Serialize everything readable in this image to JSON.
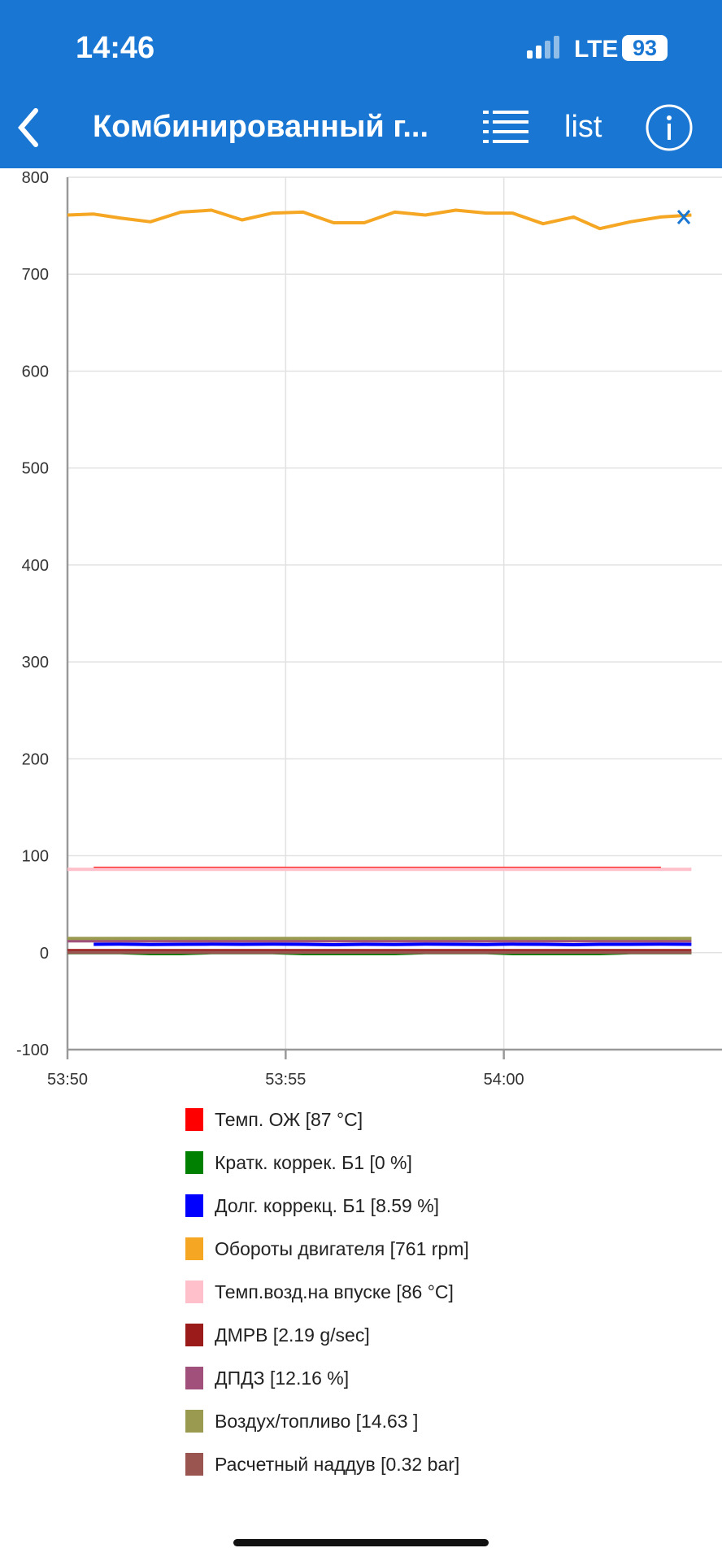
{
  "status": {
    "time": "14:46",
    "network": "LTE",
    "battery": "93"
  },
  "nav": {
    "title": "Комбинированный г...",
    "list_button": "list"
  },
  "chart_data": {
    "type": "line",
    "x": [
      3230,
      3230.6,
      3231.2,
      3231.9,
      3232.6,
      3233.3,
      3234,
      3234.7,
      3235.4,
      3236.1,
      3236.8,
      3237.5,
      3238.2,
      3238.9,
      3239.6,
      3240.2,
      3240.9,
      3241.6,
      3242.2,
      3242.9,
      3243.6,
      3244.3
    ],
    "xlim": [
      3230,
      3245
    ],
    "xticks": [
      {
        "value": 3230,
        "label": "53:50"
      },
      {
        "value": 3235,
        "label": "53:55"
      },
      {
        "value": 3240,
        "label": "54:00"
      }
    ],
    "ylim": [
      -100,
      800
    ],
    "yticks": [
      -100,
      0,
      100,
      200,
      300,
      400,
      500,
      600,
      700,
      800
    ],
    "grid": true,
    "series": [
      {
        "name": "Темп. ОЖ [87 °C]",
        "color": "#ff0000",
        "values": [
          null,
          87,
          87,
          87,
          87,
          87,
          87,
          87,
          87,
          87,
          87,
          87,
          87,
          87,
          87,
          87,
          87,
          87,
          87,
          87,
          87,
          null
        ]
      },
      {
        "name": "Кратк. коррек. Б1 [0 %]",
        "color": "#008000",
        "values": [
          0,
          0,
          0,
          -1,
          -1,
          0,
          0,
          0,
          -1,
          -1,
          -1,
          -1,
          0,
          0,
          0,
          -1,
          -1,
          -1,
          -1,
          0,
          0,
          0
        ]
      },
      {
        "name": "Долг. коррекц. Б1 [8.59 %]",
        "color": "#0000ff",
        "values": [
          null,
          8.6,
          8.8,
          8.4,
          8.6,
          8.8,
          8.6,
          8.8,
          8.6,
          8.2,
          8.6,
          8.4,
          8.8,
          8.6,
          8.4,
          8.8,
          8.6,
          8.2,
          8.6,
          8.6,
          8.8,
          8.59
        ]
      },
      {
        "name": "Обороты двигателя [761 rpm]",
        "color": "#f5a623",
        "values": [
          761,
          762,
          758,
          754,
          764,
          766,
          756,
          763,
          764,
          753,
          753,
          764,
          761,
          766,
          763,
          763,
          752,
          759,
          747,
          754,
          759,
          761
        ]
      },
      {
        "name": "Темп.возд.на впуске [86 °C]",
        "color": "#ffc0cb",
        "values": [
          86,
          86,
          86,
          86,
          86,
          86,
          86,
          86,
          86,
          86,
          86,
          86,
          86,
          86,
          86,
          86,
          86,
          86,
          86,
          86,
          86,
          86
        ]
      },
      {
        "name": "ДМРВ [2.19 g/sec]",
        "color": "#9b1a1a",
        "values": [
          2.2,
          2.2,
          2.2,
          2.2,
          2.2,
          2.2,
          2.2,
          2.2,
          2.2,
          2.2,
          2.2,
          2.2,
          2.2,
          2.2,
          2.2,
          2.2,
          2.2,
          2.2,
          2.2,
          2.2,
          2.2,
          2.19
        ]
      },
      {
        "name": "ДПДЗ [12.16 %]",
        "color": "#a0507a",
        "values": [
          12.16,
          12.16,
          12.16,
          12.16,
          12.16,
          12.16,
          12.16,
          12.16,
          12.16,
          12.16,
          12.16,
          12.16,
          12.16,
          12.16,
          12.16,
          12.16,
          12.16,
          12.16,
          12.16,
          12.16,
          12.16,
          12.16
        ]
      },
      {
        "name": "Воздух/топливо [14.63 ]",
        "color": "#9a9a50",
        "values": [
          14.63,
          14.63,
          14.63,
          14.63,
          14.63,
          14.63,
          14.63,
          14.63,
          14.63,
          14.63,
          14.63,
          14.63,
          14.63,
          14.63,
          14.63,
          14.63,
          14.63,
          14.63,
          14.63,
          14.63,
          14.63,
          14.63
        ]
      },
      {
        "name": "Расчетный наддув [0.32 bar]",
        "color": "#9b5550",
        "values": [
          0.32,
          0.32,
          0.32,
          0.32,
          0.32,
          0.32,
          0.32,
          0.32,
          0.32,
          0.32,
          0.32,
          0.32,
          0.32,
          0.32,
          0.32,
          0.32,
          0.32,
          0.32,
          0.32,
          0.32,
          0.32,
          0.32
        ]
      }
    ]
  }
}
